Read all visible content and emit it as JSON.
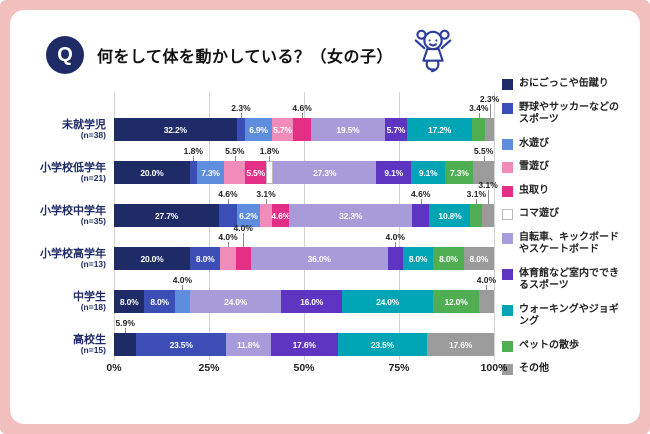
{
  "page": {
    "frame_color": "#f2bfbf",
    "accent_navy": "#1f2b66"
  },
  "header": {
    "q_badge": "Q",
    "title": "何をして体を動かしている？（女の子）"
  },
  "chart_data": {
    "type": "bar",
    "variant": "stacked-horizontal-100pct",
    "unit": "%",
    "xlim": [
      0,
      100
    ],
    "x_ticks": [
      "0%",
      "25%",
      "50%",
      "75%",
      "100%"
    ],
    "grid": true,
    "legend_position": "right",
    "categories": [
      {
        "name": "おにごっこや缶蹴り",
        "color": "#1f2b66"
      },
      {
        "name": "野球やサッカーなどのスポーツ",
        "color": "#3b4eb5"
      },
      {
        "name": "水遊び",
        "color": "#5f8ddd"
      },
      {
        "name": "雪遊び",
        "color": "#f18cba"
      },
      {
        "name": "虫取り",
        "color": "#e42f86"
      },
      {
        "name": "コマ遊び",
        "color": "#ffffff",
        "border": "#bbbbbb"
      },
      {
        "name": "自転車、キックボードやスケートボード",
        "color": "#a79bd9"
      },
      {
        "name": "体育館など室内でできるスポーツ",
        "color": "#5e35c0"
      },
      {
        "name": "ウォーキングやジョギング",
        "color": "#00a5b5"
      },
      {
        "name": "ペットの散歩",
        "color": "#4fae52"
      },
      {
        "name": "その他",
        "color": "#9b9b9b"
      }
    ],
    "rows": [
      {
        "group": "未就学児",
        "n": "(n=38)",
        "segments": [
          {
            "cat": 0,
            "value": 32.2
          },
          {
            "cat": 1,
            "value": 2.3,
            "callout": true
          },
          {
            "cat": 2,
            "value": 6.9
          },
          {
            "cat": 3,
            "value": 5.7
          },
          {
            "cat": 4,
            "value": 4.6,
            "callout": true
          },
          {
            "cat": 6,
            "value": 19.5
          },
          {
            "cat": 7,
            "value": 5.7
          },
          {
            "cat": 8,
            "value": 17.2
          },
          {
            "cat": 9,
            "value": 3.4,
            "callout": true
          },
          {
            "cat": 10,
            "value": 2.3,
            "callout": true
          }
        ]
      },
      {
        "group": "小学校低学年",
        "n": "(n=21)",
        "segments": [
          {
            "cat": 0,
            "value": 20.0
          },
          {
            "cat": 1,
            "value": 1.8,
            "callout": true
          },
          {
            "cat": 2,
            "value": 7.3
          },
          {
            "cat": 3,
            "value": 5.5,
            "callout": true
          },
          {
            "cat": 4,
            "value": 5.5
          },
          {
            "cat": 5,
            "value": 1.8,
            "callout": true
          },
          {
            "cat": 6,
            "value": 27.3
          },
          {
            "cat": 7,
            "value": 9.1
          },
          {
            "cat": 8,
            "value": 9.1
          },
          {
            "cat": 9,
            "value": 7.3
          },
          {
            "cat": 10,
            "value": 5.5,
            "callout": true
          }
        ]
      },
      {
        "group": "小学校中学年",
        "n": "(n=35)",
        "segments": [
          {
            "cat": 0,
            "value": 27.7
          },
          {
            "cat": 1,
            "value": 4.6,
            "callout": true
          },
          {
            "cat": 2,
            "value": 6.2
          },
          {
            "cat": 3,
            "value": 3.1,
            "callout": true
          },
          {
            "cat": 4,
            "value": 4.6
          },
          {
            "cat": 6,
            "value": 32.3
          },
          {
            "cat": 7,
            "value": 4.6,
            "callout": true
          },
          {
            "cat": 8,
            "value": 10.8
          },
          {
            "cat": 9,
            "value": 3.1,
            "callout": true
          },
          {
            "cat": 10,
            "value": 3.1,
            "callout": true
          }
        ]
      },
      {
        "group": "小学校高学年",
        "n": "(n=13)",
        "segments": [
          {
            "cat": 0,
            "value": 20.0
          },
          {
            "cat": 1,
            "value": 8.0
          },
          {
            "cat": 3,
            "value": 4.0,
            "callout": true
          },
          {
            "cat": 4,
            "value": 4.0,
            "callout": true
          },
          {
            "cat": 6,
            "value": 36.0
          },
          {
            "cat": 7,
            "value": 4.0,
            "callout": true
          },
          {
            "cat": 8,
            "value": 8.0
          },
          {
            "cat": 9,
            "value": 8.0
          },
          {
            "cat": 10,
            "value": 8.0
          }
        ]
      },
      {
        "group": "中学生",
        "n": "(n=18)",
        "segments": [
          {
            "cat": 0,
            "value": 8.0
          },
          {
            "cat": 1,
            "value": 8.0
          },
          {
            "cat": 2,
            "value": 4.0,
            "callout": true
          },
          {
            "cat": 6,
            "value": 24.0
          },
          {
            "cat": 7,
            "value": 16.0
          },
          {
            "cat": 8,
            "value": 24.0
          },
          {
            "cat": 9,
            "value": 12.0
          },
          {
            "cat": 10,
            "value": 4.0,
            "callout": true
          }
        ]
      },
      {
        "group": "高校生",
        "n": "(n=15)",
        "segments": [
          {
            "cat": 0,
            "value": 5.9,
            "callout": true
          },
          {
            "cat": 1,
            "value": 23.5
          },
          {
            "cat": 6,
            "value": 11.8
          },
          {
            "cat": 7,
            "value": 17.6
          },
          {
            "cat": 8,
            "value": 23.5
          },
          {
            "cat": 10,
            "value": 17.6
          }
        ]
      }
    ]
  }
}
